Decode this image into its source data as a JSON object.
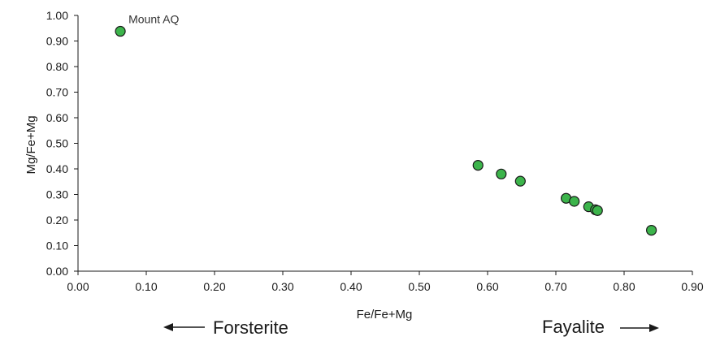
{
  "chart_data": {
    "type": "scatter",
    "xlabel": "Fe/Fe+Mg",
    "ylabel": "Mg/Fe+Mg",
    "xlim": [
      0.0,
      0.9
    ],
    "ylim": [
      0.0,
      1.0
    ],
    "x_ticks": [
      "0.00",
      "0.10",
      "0.20",
      "0.30",
      "0.40",
      "0.50",
      "0.60",
      "0.70",
      "0.80",
      "0.90"
    ],
    "y_ticks": [
      "0.00",
      "0.10",
      "0.20",
      "0.30",
      "0.40",
      "0.50",
      "0.60",
      "0.70",
      "0.80",
      "0.90",
      "1.00"
    ],
    "grid": false,
    "marker_color": "#3cb44b",
    "marker_edge_color": "#1a1a1a",
    "points": [
      {
        "x": 0.062,
        "y": 0.938
      },
      {
        "x": 0.586,
        "y": 0.414
      },
      {
        "x": 0.62,
        "y": 0.38
      },
      {
        "x": 0.648,
        "y": 0.352
      },
      {
        "x": 0.715,
        "y": 0.285
      },
      {
        "x": 0.727,
        "y": 0.273
      },
      {
        "x": 0.748,
        "y": 0.252
      },
      {
        "x": 0.758,
        "y": 0.24
      },
      {
        "x": 0.761,
        "y": 0.237
      },
      {
        "x": 0.84,
        "y": 0.16
      }
    ],
    "annotations": [
      {
        "text": "Mount AQ",
        "point_index": 0
      }
    ],
    "bottom_labels": {
      "left": {
        "text": "Forsterite",
        "arrow": "left"
      },
      "right": {
        "text": "Fayalite",
        "arrow": "right"
      }
    }
  }
}
